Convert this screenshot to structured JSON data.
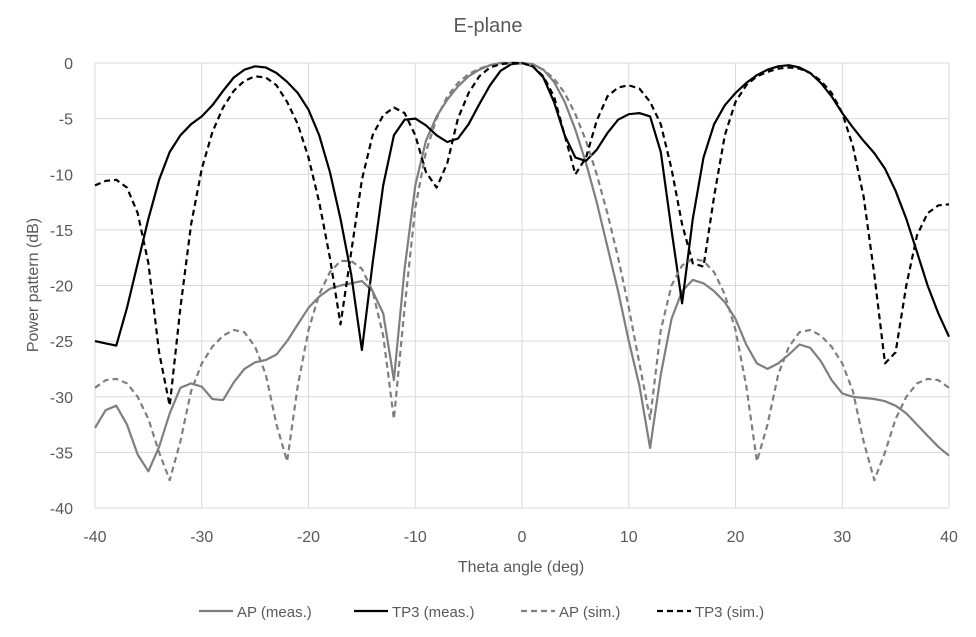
{
  "chart_data": {
    "type": "line",
    "title": "E-plane",
    "xlabel": "Theta angle (deg)",
    "ylabel": "Power pattern (dB)",
    "xlim": [
      -40,
      40
    ],
    "ylim": [
      -40,
      0
    ],
    "xticks": [
      -40,
      -30,
      -20,
      -10,
      0,
      10,
      20,
      30,
      40
    ],
    "yticks": [
      0,
      -5,
      -10,
      -15,
      -20,
      -25,
      -30,
      -35,
      -40
    ],
    "grid": true,
    "legend_position": "bottom",
    "series": [
      {
        "name": "AP (meas.)",
        "color": "#7f7f7f",
        "dash": "solid",
        "x": [
          -40,
          -39,
          -38,
          -37,
          -36,
          -35,
          -34,
          -33,
          -32,
          -31,
          -30,
          -29,
          -28,
          -27,
          -26,
          -25,
          -24,
          -23,
          -22,
          -21,
          -20,
          -19,
          -18,
          -17,
          -16,
          -15,
          -14,
          -13,
          -12,
          -11,
          -10,
          -9,
          -8,
          -7,
          -6,
          -5,
          -4,
          -3,
          -2,
          -1,
          0,
          1,
          2,
          3,
          4,
          5,
          6,
          7,
          8,
          9,
          10,
          11,
          12,
          13,
          14,
          15,
          16,
          17,
          18,
          19,
          20,
          21,
          22,
          23,
          24,
          25,
          26,
          27,
          28,
          29,
          30,
          31,
          32,
          33,
          34,
          35,
          36,
          37,
          38,
          39,
          40
        ],
        "y": [
          -32.8,
          -31.2,
          -30.8,
          -32.5,
          -35.2,
          -36.7,
          -34.5,
          -31.5,
          -29.2,
          -28.8,
          -29.1,
          -30.2,
          -30.3,
          -28.7,
          -27.5,
          -26.9,
          -26.7,
          -26.2,
          -25.0,
          -23.5,
          -22.0,
          -21.0,
          -20.3,
          -20.0,
          -19.8,
          -19.6,
          -20.5,
          -22.5,
          -28.5,
          -18.5,
          -11.0,
          -7.0,
          -4.8,
          -3.3,
          -2.1,
          -1.2,
          -0.6,
          -0.2,
          0.0,
          0.0,
          0.0,
          -0.1,
          -0.6,
          -1.7,
          -3.5,
          -6.0,
          -9.0,
          -12.5,
          -16.5,
          -20.5,
          -25.0,
          -29.0,
          -34.6,
          -28.0,
          -23.0,
          -20.5,
          -19.5,
          -19.8,
          -20.5,
          -21.5,
          -23.0,
          -25.3,
          -27.0,
          -27.5,
          -27.0,
          -26.2,
          -25.3,
          -25.6,
          -26.8,
          -28.5,
          -29.7,
          -30.0,
          -30.1,
          -30.2,
          -30.4,
          -30.8,
          -31.5,
          -32.5,
          -33.5,
          -34.5,
          -35.3
        ]
      },
      {
        "name": "TP3 (meas.)",
        "color": "#000000",
        "dash": "solid",
        "x": [
          -40,
          -39,
          -38,
          -37,
          -36,
          -35,
          -34,
          -33,
          -32,
          -31,
          -30,
          -29,
          -28,
          -27,
          -26,
          -25,
          -24,
          -23,
          -22,
          -21,
          -20,
          -19,
          -18,
          -17,
          -16,
          -15,
          -14,
          -13,
          -12,
          -11,
          -10,
          -9,
          -8,
          -7,
          -6,
          -5,
          -4,
          -3,
          -2,
          -1,
          0,
          1,
          2,
          3,
          4,
          5,
          6,
          7,
          8,
          9,
          10,
          11,
          12,
          13,
          14,
          15,
          16,
          17,
          18,
          19,
          20,
          21,
          22,
          23,
          24,
          25,
          26,
          27,
          28,
          29,
          30,
          31,
          32,
          33,
          34,
          35,
          36,
          37,
          38,
          39,
          40
        ],
        "y": [
          -25.0,
          -25.2,
          -25.4,
          -22.0,
          -18.0,
          -14.0,
          -10.5,
          -8.0,
          -6.5,
          -5.5,
          -4.8,
          -3.8,
          -2.5,
          -1.3,
          -0.6,
          -0.3,
          -0.4,
          -0.9,
          -1.7,
          -2.7,
          -4.2,
          -6.5,
          -9.8,
          -14.0,
          -19.0,
          -25.8,
          -18.0,
          -11.0,
          -6.5,
          -5.1,
          -5.0,
          -5.6,
          -6.5,
          -7.1,
          -6.8,
          -5.5,
          -3.7,
          -2.0,
          -0.7,
          -0.1,
          0.0,
          -0.3,
          -1.3,
          -3.5,
          -6.5,
          -8.5,
          -8.8,
          -7.8,
          -6.3,
          -5.1,
          -4.6,
          -4.5,
          -4.8,
          -8.0,
          -15.0,
          -21.6,
          -14.0,
          -8.5,
          -5.5,
          -3.8,
          -2.7,
          -1.8,
          -1.1,
          -0.6,
          -0.3,
          -0.2,
          -0.4,
          -0.9,
          -1.8,
          -3.0,
          -4.5,
          -5.8,
          -7.0,
          -8.1,
          -9.5,
          -11.5,
          -14.0,
          -17.0,
          -20.0,
          -22.5,
          -24.6
        ]
      },
      {
        "name": "AP (sim.)",
        "color": "#7f7f7f",
        "dash": "dashed",
        "x": [
          -40,
          -39,
          -38,
          -37,
          -36,
          -35,
          -34,
          -33,
          -32,
          -31,
          -30,
          -29,
          -28,
          -27,
          -26,
          -25,
          -24,
          -23,
          -22,
          -21,
          -20,
          -19,
          -18,
          -17,
          -16,
          -15,
          -14,
          -13,
          -12,
          -11,
          -10,
          -9,
          -8,
          -7,
          -6,
          -5,
          -4,
          -3,
          -2,
          -1,
          0,
          1,
          2,
          3,
          4,
          5,
          6,
          7,
          8,
          9,
          10,
          11,
          12,
          13,
          14,
          15,
          16,
          17,
          18,
          19,
          20,
          21,
          22,
          23,
          24,
          25,
          26,
          27,
          28,
          29,
          30,
          31,
          32,
          33,
          34,
          35,
          36,
          37,
          38,
          39,
          40
        ],
        "y": [
          -29.2,
          -28.5,
          -28.4,
          -28.8,
          -30.0,
          -32.0,
          -35.0,
          -37.5,
          -34.0,
          -29.5,
          -27.0,
          -25.5,
          -24.5,
          -24.0,
          -24.2,
          -25.5,
          -28.0,
          -32.5,
          -35.8,
          -29.0,
          -24.0,
          -20.8,
          -18.8,
          -17.8,
          -17.8,
          -18.5,
          -20.5,
          -24.5,
          -32.0,
          -22.0,
          -13.0,
          -8.0,
          -5.0,
          -3.0,
          -1.8,
          -1.0,
          -0.5,
          -0.2,
          0.0,
          0.0,
          0.0,
          -0.2,
          -0.6,
          -1.4,
          -2.7,
          -4.6,
          -7.0,
          -10.0,
          -13.5,
          -17.5,
          -22.0,
          -27.0,
          -32.0,
          -24.0,
          -20.0,
          -18.2,
          -17.6,
          -17.8,
          -18.8,
          -20.8,
          -24.0,
          -29.0,
          -35.8,
          -32.5,
          -28.0,
          -25.5,
          -24.2,
          -24.0,
          -24.5,
          -25.5,
          -27.0,
          -29.5,
          -34.0,
          -37.5,
          -35.0,
          -32.0,
          -30.0,
          -28.8,
          -28.4,
          -28.5,
          -29.2
        ]
      },
      {
        "name": "TP3 (sim.)",
        "color": "#000000",
        "dash": "dashed",
        "x": [
          -40,
          -39,
          -38,
          -37,
          -36,
          -35,
          -34,
          -33,
          -32,
          -31,
          -30,
          -29,
          -28,
          -27,
          -26,
          -25,
          -24,
          -23,
          -22,
          -21,
          -20,
          -19,
          -18,
          -17,
          -16,
          -15,
          -14,
          -13,
          -12,
          -11,
          -10,
          -9,
          -8,
          -7,
          -6,
          -5,
          -4,
          -3,
          -2,
          -1,
          0,
          1,
          2,
          3,
          4,
          5,
          6,
          7,
          8,
          9,
          10,
          11,
          12,
          13,
          14,
          15,
          16,
          17,
          18,
          19,
          20,
          21,
          22,
          23,
          24,
          25,
          26,
          27,
          28,
          29,
          30,
          31,
          32,
          33,
          34,
          35,
          36,
          37,
          38,
          39,
          40
        ],
        "y": [
          -11.0,
          -10.6,
          -10.5,
          -11.2,
          -13.5,
          -18.0,
          -26.0,
          -30.8,
          -22.0,
          -14.5,
          -9.5,
          -6.2,
          -4.0,
          -2.5,
          -1.6,
          -1.2,
          -1.3,
          -2.0,
          -3.5,
          -5.5,
          -8.5,
          -12.5,
          -17.5,
          -23.5,
          -17.0,
          -10.5,
          -6.5,
          -4.7,
          -4.0,
          -4.5,
          -6.5,
          -9.8,
          -11.2,
          -9.0,
          -5.0,
          -2.7,
          -1.2,
          -0.4,
          -0.1,
          0.0,
          0.0,
          -0.3,
          -1.2,
          -3.0,
          -6.5,
          -10.0,
          -8.5,
          -5.2,
          -3.0,
          -2.2,
          -2.0,
          -2.3,
          -3.5,
          -5.5,
          -9.5,
          -14.5,
          -18.0,
          -18.3,
          -12.0,
          -6.5,
          -3.5,
          -2.0,
          -1.2,
          -0.8,
          -0.5,
          -0.4,
          -0.5,
          -0.9,
          -1.6,
          -2.7,
          -4.5,
          -7.5,
          -12.0,
          -19.0,
          -27.0,
          -26.0,
          -20.0,
          -15.5,
          -13.5,
          -12.8,
          -12.7
        ]
      }
    ]
  }
}
